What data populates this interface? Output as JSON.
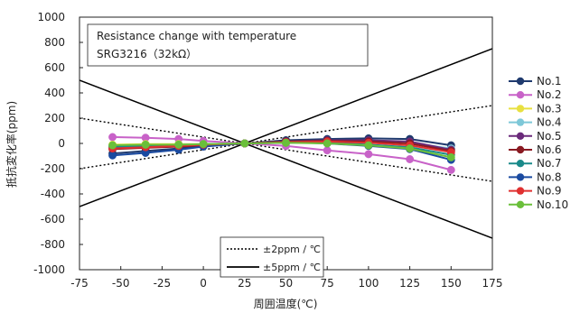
{
  "chart_data": {
    "type": "line",
    "title": "Resistance change with temperature",
    "subtitle": "SRG3216（32kΩ）",
    "xlabel": "周囲温度(℃)",
    "ylabel": "抵抗変化率(ppm)",
    "xlim": [
      -75,
      175
    ],
    "ylim": [
      -1000,
      1000
    ],
    "x_ticks": [
      "-75",
      "-50",
      "-25",
      "0",
      "25",
      "50",
      "75",
      "100",
      "125",
      "150",
      "175"
    ],
    "y_ticks": [
      "1000",
      "800",
      "600",
      "400",
      "200",
      "0",
      "-200",
      "-400",
      "-600",
      "-800",
      "-1000"
    ],
    "grid": false,
    "x": [
      -55,
      -35,
      -15,
      0,
      25,
      50,
      75,
      100,
      125,
      150
    ],
    "series": [
      {
        "name": "No.1",
        "color": "#1f3a6e",
        "values": [
          -80,
          -60,
          -40,
          -20,
          0,
          25,
          35,
          40,
          35,
          -15
        ]
      },
      {
        "name": "No.2",
        "color": "#c862c8",
        "values": [
          50,
          45,
          35,
          20,
          0,
          -20,
          -55,
          -85,
          -125,
          -210
        ]
      },
      {
        "name": "No.3",
        "color": "#e8e040",
        "values": [
          -10,
          -5,
          -5,
          -5,
          0,
          5,
          10,
          5,
          -5,
          -45
        ]
      },
      {
        "name": "No.4",
        "color": "#7ec8d8",
        "values": [
          -20,
          -15,
          -10,
          -5,
          0,
          10,
          15,
          15,
          5,
          -40
        ]
      },
      {
        "name": "No.5",
        "color": "#6a2a7a",
        "values": [
          -35,
          -25,
          -20,
          -10,
          0,
          15,
          25,
          25,
          15,
          -50
        ]
      },
      {
        "name": "No.6",
        "color": "#8a1a22",
        "values": [
          -45,
          -35,
          -25,
          -15,
          0,
          15,
          20,
          15,
          0,
          -60
        ]
      },
      {
        "name": "No.7",
        "color": "#1a8a8a",
        "values": [
          -25,
          -20,
          -15,
          -10,
          0,
          5,
          5,
          -10,
          -30,
          -90
        ]
      },
      {
        "name": "No.8",
        "color": "#1a4aa0",
        "values": [
          -95,
          -75,
          -50,
          -25,
          0,
          10,
          0,
          -20,
          -45,
          -130
        ]
      },
      {
        "name": "No.9",
        "color": "#e03030",
        "values": [
          -40,
          -30,
          -20,
          -10,
          0,
          10,
          15,
          5,
          -15,
          -70
        ]
      },
      {
        "name": "No.10",
        "color": "#6abf3a",
        "values": [
          -15,
          -10,
          -10,
          -5,
          0,
          5,
          0,
          -15,
          -40,
          -110
        ]
      }
    ],
    "reference_lines": [
      {
        "label": "±2ppm / ℃",
        "style": "dotted",
        "slope": 2,
        "x0": 25
      },
      {
        "label": "±5ppm / ℃",
        "style": "solid",
        "slope": 5,
        "x0": 25
      }
    ],
    "legend_placement": "right"
  }
}
